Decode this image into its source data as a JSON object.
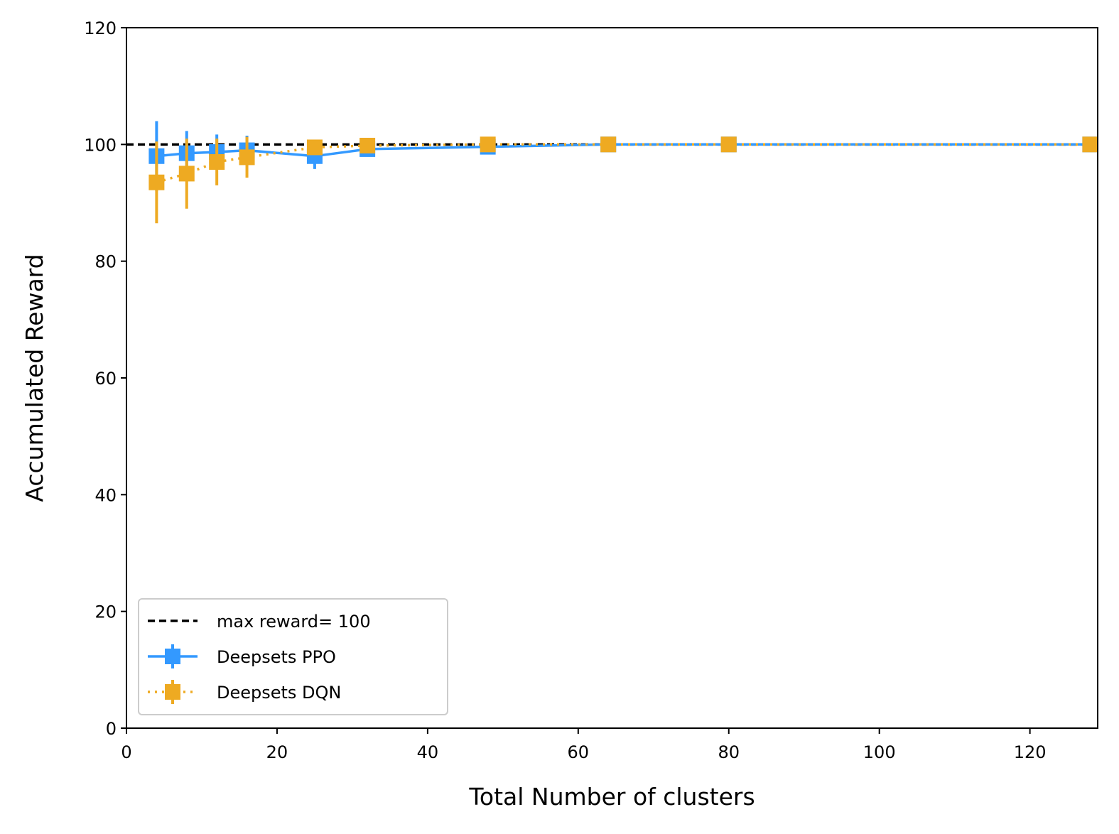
{
  "chart_data": {
    "type": "line",
    "title": "",
    "xlabel": "Total Number of clusters",
    "ylabel": "Accumulated Reward",
    "xlim": [
      0,
      129
    ],
    "ylim": [
      0,
      120
    ],
    "xticks": [
      0,
      20,
      40,
      60,
      80,
      100,
      120
    ],
    "yticks": [
      0,
      20,
      40,
      60,
      80,
      100,
      120
    ],
    "grid": false,
    "legend_position": "lower-left",
    "reference_line": {
      "label": "max reward= 100",
      "y": 100,
      "color": "#000000",
      "style": "dashed"
    },
    "series": [
      {
        "name": "Deepsets PPO",
        "color": "#3399ff",
        "style": "solid",
        "marker": "square",
        "x": [
          4,
          8,
          12,
          16,
          25,
          32,
          48,
          64,
          80,
          128
        ],
        "y": [
          98,
          98.5,
          98.7,
          99,
          98,
          99.2,
          99.6,
          100,
          100,
          100
        ],
        "yerr": [
          6,
          3.8,
          3,
          2.5,
          2.2,
          0.8,
          0.5,
          0,
          0,
          0
        ]
      },
      {
        "name": "Deepsets DQN",
        "color": "#eeaa22",
        "style": "dotted",
        "marker": "square",
        "x": [
          4,
          8,
          12,
          16,
          25,
          32,
          48,
          64,
          80,
          128
        ],
        "y": [
          93.5,
          95,
          97,
          97.8,
          99.5,
          99.8,
          100,
          100,
          100,
          100
        ],
        "yerr": [
          7,
          6,
          4,
          3.5,
          0.8,
          0.5,
          0,
          0,
          0,
          0
        ]
      }
    ]
  }
}
